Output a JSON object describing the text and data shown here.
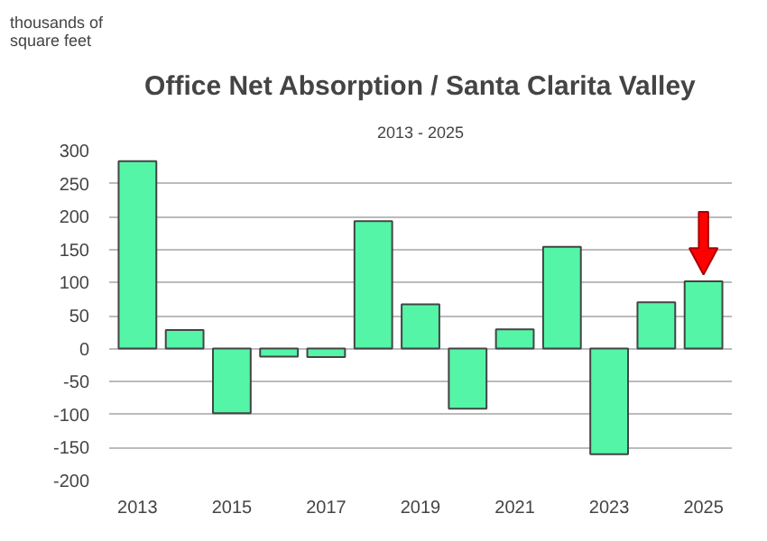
{
  "chart_data": {
    "type": "bar",
    "title": "Office Net Absorption / Santa Clarita Valley",
    "subtitle": "2013 - 2025",
    "annotations": [
      "thousands of square feet"
    ],
    "categories": [
      "2013",
      null,
      "2015",
      null,
      "2017",
      null,
      "2019",
      null,
      "2021",
      null,
      "2023",
      null,
      "2025"
    ],
    "values": [
      284,
      28,
      -98,
      -12,
      -13,
      193,
      67,
      -91,
      29,
      154,
      -160,
      70,
      102
    ],
    "color": "#55f5a8",
    "ylim": [
      -200,
      300
    ],
    "yticks": [
      -200,
      -150,
      -100,
      -50,
      0,
      50,
      100,
      150,
      200,
      250,
      300
    ],
    "grid": "y"
  }
}
